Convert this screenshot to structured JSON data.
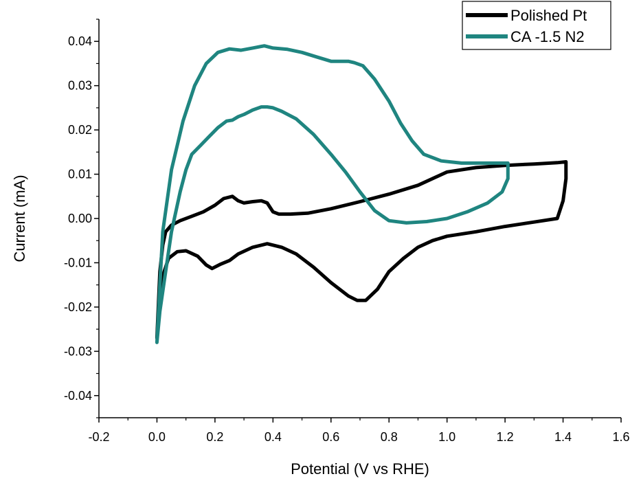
{
  "chart_data": {
    "type": "line",
    "title": "",
    "xlabel": "Potential (V vs RHE)",
    "ylabel": "Current (mA)",
    "xlim": [
      -0.2,
      1.6
    ],
    "ylim": [
      -0.045,
      0.045
    ],
    "xticks": [
      -0.2,
      0.0,
      0.2,
      0.4,
      0.6,
      0.8,
      1.0,
      1.2,
      1.4,
      1.6
    ],
    "xtick_labels": [
      "-0.2",
      "0.0",
      "0.2",
      "0.4",
      "0.6",
      "0.8",
      "1.0",
      "1.2",
      "1.4",
      "1.6"
    ],
    "yticks": [
      -0.04,
      -0.03,
      -0.02,
      -0.01,
      0.0,
      0.01,
      0.02,
      0.03,
      0.04
    ],
    "ytick_labels": [
      "-0.04",
      "-0.03",
      "-0.02",
      "-0.01",
      "0.00",
      "0.01",
      "0.02",
      "0.03",
      "0.04"
    ],
    "grid": false,
    "legend_position": "top-right",
    "series": [
      {
        "name": "Polished Pt",
        "color": "#000000",
        "x": [
          0.0,
          0.01,
          0.02,
          0.03,
          0.05,
          0.08,
          0.12,
          0.16,
          0.2,
          0.23,
          0.26,
          0.28,
          0.3,
          0.33,
          0.36,
          0.38,
          0.4,
          0.42,
          0.46,
          0.52,
          0.6,
          0.7,
          0.8,
          0.9,
          1.0,
          1.1,
          1.2,
          1.3,
          1.38,
          1.41,
          1.41,
          1.4,
          1.38,
          1.3,
          1.2,
          1.1,
          1.0,
          0.95,
          0.9,
          0.85,
          0.8,
          0.76,
          0.72,
          0.69,
          0.66,
          0.6,
          0.54,
          0.48,
          0.43,
          0.38,
          0.33,
          0.28,
          0.25,
          0.22,
          0.19,
          0.17,
          0.14,
          0.1,
          0.07,
          0.04,
          0.02,
          0.01,
          0.0
        ],
        "y": [
          -0.027,
          -0.012,
          -0.006,
          -0.003,
          -0.0015,
          -0.0005,
          0.0005,
          0.0015,
          0.003,
          0.0045,
          0.005,
          0.004,
          0.0035,
          0.0038,
          0.004,
          0.0035,
          0.0015,
          0.001,
          0.001,
          0.0012,
          0.0022,
          0.0038,
          0.0055,
          0.0075,
          0.0105,
          0.0115,
          0.012,
          0.0123,
          0.0126,
          0.0128,
          0.009,
          0.004,
          0.0,
          -0.0008,
          -0.0018,
          -0.003,
          -0.004,
          -0.005,
          -0.0065,
          -0.009,
          -0.012,
          -0.016,
          -0.0185,
          -0.0185,
          -0.0175,
          -0.0145,
          -0.011,
          -0.008,
          -0.0065,
          -0.0057,
          -0.0065,
          -0.008,
          -0.0095,
          -0.0103,
          -0.0113,
          -0.0105,
          -0.0085,
          -0.0073,
          -0.0075,
          -0.009,
          -0.013,
          -0.019,
          -0.027
        ]
      },
      {
        "name": "CA -1.5 N2",
        "color": "#1f8580",
        "x": [
          0.0,
          0.01,
          0.03,
          0.05,
          0.08,
          0.1,
          0.12,
          0.15,
          0.18,
          0.21,
          0.24,
          0.26,
          0.28,
          0.3,
          0.33,
          0.36,
          0.38,
          0.4,
          0.43,
          0.48,
          0.54,
          0.6,
          0.65,
          0.7,
          0.75,
          0.8,
          0.86,
          0.93,
          1.0,
          1.07,
          1.14,
          1.19,
          1.21,
          1.21,
          1.2,
          1.17,
          1.12,
          1.05,
          0.98,
          0.92,
          0.88,
          0.84,
          0.8,
          0.75,
          0.71,
          0.68,
          0.66,
          0.63,
          0.6,
          0.55,
          0.5,
          0.45,
          0.4,
          0.37,
          0.33,
          0.29,
          0.25,
          0.21,
          0.17,
          0.13,
          0.09,
          0.05,
          0.02,
          0.01,
          0.0
        ],
        "y": [
          -0.028,
          -0.021,
          -0.012,
          -0.003,
          0.006,
          0.011,
          0.0145,
          0.0165,
          0.0185,
          0.0205,
          0.022,
          0.0222,
          0.023,
          0.0235,
          0.0245,
          0.0252,
          0.0252,
          0.025,
          0.0242,
          0.0225,
          0.019,
          0.0145,
          0.0105,
          0.006,
          0.0018,
          -0.0005,
          -0.001,
          -0.0007,
          0.0,
          0.0015,
          0.0035,
          0.006,
          0.009,
          0.0125,
          0.0125,
          0.0125,
          0.0125,
          0.0125,
          0.013,
          0.0145,
          0.0175,
          0.0215,
          0.0265,
          0.0315,
          0.0345,
          0.0352,
          0.0355,
          0.0355,
          0.0355,
          0.0365,
          0.0375,
          0.0382,
          0.0385,
          0.039,
          0.0385,
          0.038,
          0.0383,
          0.0375,
          0.035,
          0.03,
          0.022,
          0.011,
          -0.003,
          -0.015,
          -0.028
        ]
      }
    ]
  }
}
